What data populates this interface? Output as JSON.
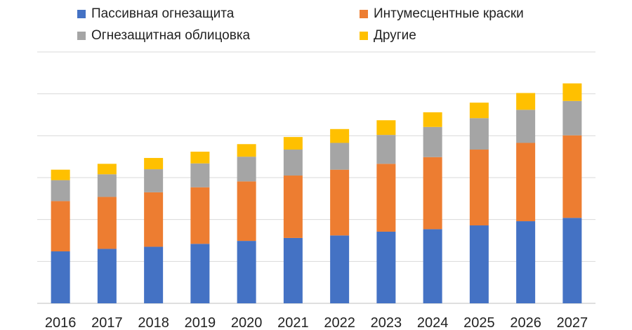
{
  "chart_data": {
    "type": "bar",
    "stacked": true,
    "title": "",
    "xlabel": "",
    "ylabel": "",
    "ylim": [
      0,
      6
    ],
    "y_tick_labels_shown": false,
    "grid": true,
    "legend_position": "top",
    "categories": [
      "2016",
      "2017",
      "2018",
      "2019",
      "2020",
      "2021",
      "2022",
      "2023",
      "2024",
      "2025",
      "2026",
      "2027"
    ],
    "series": [
      {
        "name": "Пассивная огнезащита",
        "color": "#4472C4",
        "values": [
          1.24,
          1.3,
          1.35,
          1.42,
          1.49,
          1.56,
          1.62,
          1.71,
          1.77,
          1.86,
          1.96,
          2.04
        ]
      },
      {
        "name": "Интумесцентные краски",
        "color": "#ED7D31",
        "values": [
          1.2,
          1.24,
          1.3,
          1.35,
          1.42,
          1.49,
          1.57,
          1.62,
          1.72,
          1.81,
          1.87,
          1.97
        ]
      },
      {
        "name": "Огнезащитная облицовка",
        "color": "#A5A5A5",
        "values": [
          0.5,
          0.54,
          0.55,
          0.57,
          0.59,
          0.62,
          0.64,
          0.69,
          0.72,
          0.75,
          0.79,
          0.82
        ]
      },
      {
        "name": "Другие",
        "color": "#FFC000",
        "values": [
          0.25,
          0.25,
          0.27,
          0.28,
          0.3,
          0.3,
          0.33,
          0.35,
          0.35,
          0.37,
          0.4,
          0.42
        ]
      }
    ]
  }
}
